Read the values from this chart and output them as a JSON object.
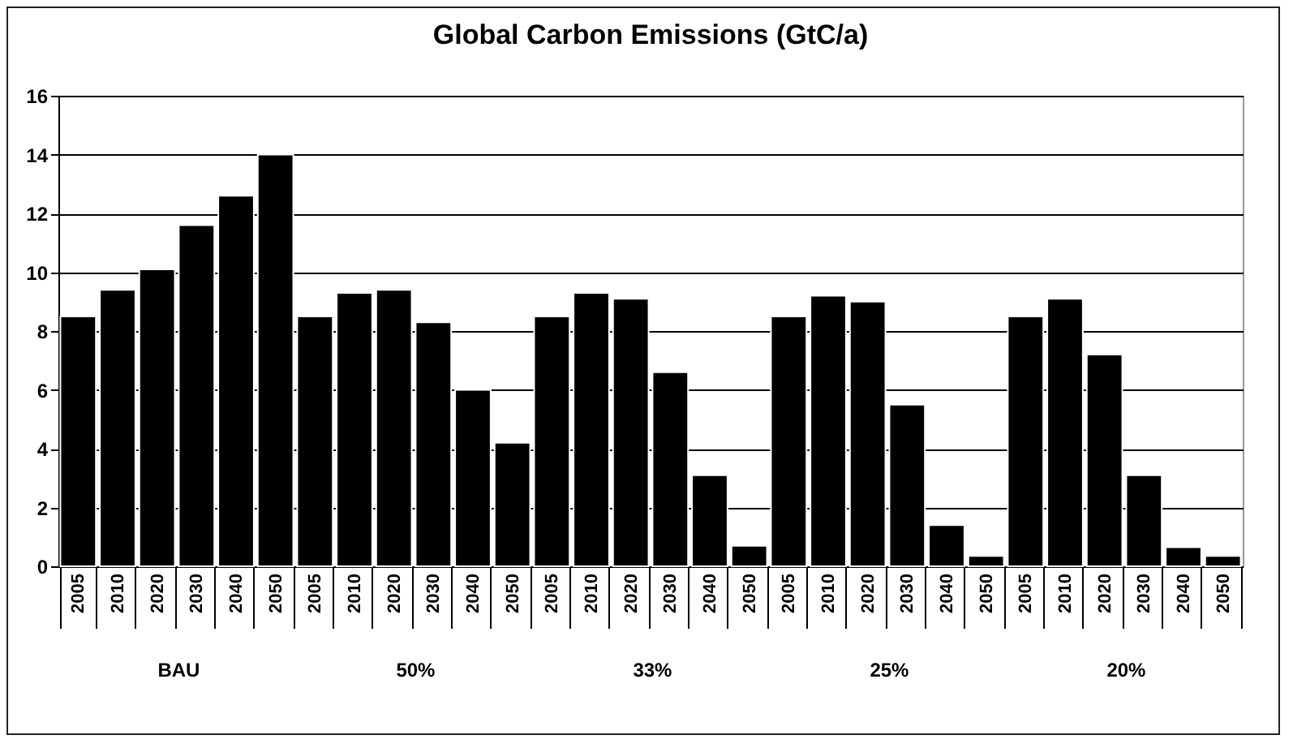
{
  "chart_data": {
    "type": "bar",
    "title": "Global Carbon Emissions  (GtC/a)",
    "categories": [
      "2005",
      "2010",
      "2020",
      "2030",
      "2040",
      "2050",
      "2005",
      "2010",
      "2020",
      "2030",
      "2040",
      "2050",
      "2005",
      "2010",
      "2020",
      "2030",
      "2040",
      "2050",
      "2005",
      "2010",
      "2020",
      "2030",
      "2040",
      "2050",
      "2005",
      "2010",
      "2020",
      "2030",
      "2040",
      "2050"
    ],
    "values": [
      8.5,
      9.4,
      10.1,
      11.6,
      12.6,
      14.0,
      8.5,
      9.3,
      9.4,
      8.3,
      6.0,
      4.2,
      8.5,
      9.3,
      9.1,
      6.6,
      3.1,
      0.7,
      8.5,
      9.2,
      9.0,
      5.5,
      1.4,
      0.35,
      8.5,
      9.1,
      7.2,
      3.1,
      0.65,
      0.35
    ],
    "color": "#000000",
    "annotations": [
      "BAU",
      "50%",
      "33%",
      "25%",
      "20%"
    ],
    "ylim": [
      0,
      16
    ],
    "yticks": [
      0,
      2,
      4,
      6,
      8,
      10,
      12,
      14,
      16
    ],
    "grid": "y"
  }
}
